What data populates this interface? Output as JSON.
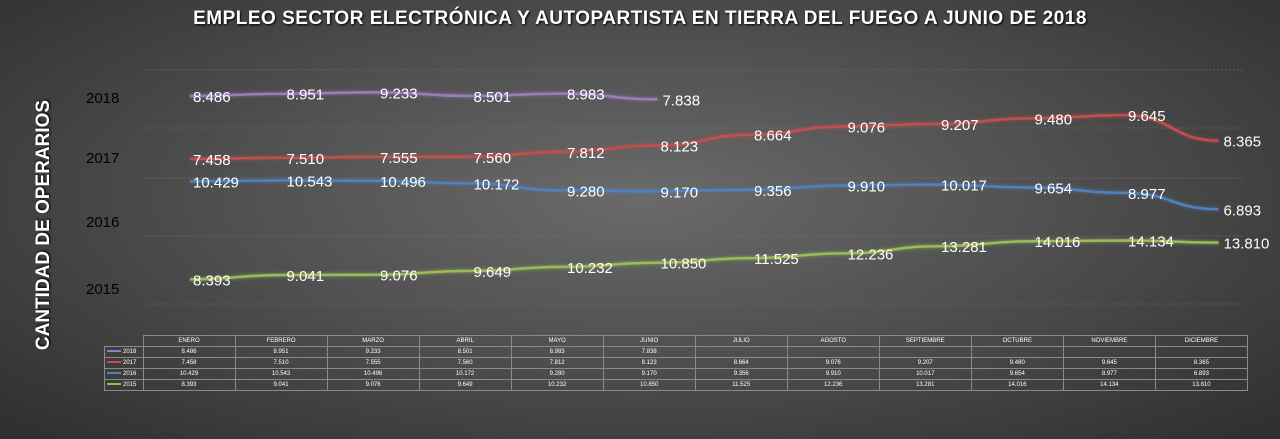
{
  "title": "EMPLEO SECTOR ELECTRÓNICA Y AUTOPARTISTA EN TIERRA DEL FUEGO A JUNIO DE 2018",
  "chart_data": {
    "type": "line",
    "title": "EMPLEO SECTOR ELECTRÓNICA Y AUTOPARTISTA EN TIERRA DEL FUEGO A JUNIO DE 2018",
    "ylabel": "CANTIDAD DE OPERARIOS",
    "xlabel": "",
    "categories": [
      "ENERO",
      "FEBRERO",
      "MARZO",
      "ABRIL",
      "MAYO",
      "JUNIO",
      "JULIO",
      "AGOSTO",
      "SEPTIEMBRE",
      "OCTUBRE",
      "NOVIEMBRE",
      "DICIEMBRE"
    ],
    "series": [
      {
        "name": "2018",
        "color": "#9b7bbf",
        "values": [
          8486,
          8951,
          9233,
          8501,
          8983,
          7838,
          null,
          null,
          null,
          null,
          null,
          null
        ],
        "labels": [
          "8.486",
          "8.951",
          "9.233",
          "8.501",
          "8.983",
          "7.838",
          "",
          "",
          "",
          "",
          "",
          ""
        ]
      },
      {
        "name": "2017",
        "color": "#c0504d",
        "values": [
          7458,
          7510,
          7555,
          7560,
          7812,
          8123,
          8664,
          9076,
          9207,
          9480,
          9645,
          8365
        ],
        "labels": [
          "7.458",
          "7.510",
          "7.555",
          "7.560",
          "7.812",
          "8.123",
          "8.664",
          "9.076",
          "9.207",
          "9.480",
          "9.645",
          "8.365"
        ]
      },
      {
        "name": "2016",
        "color": "#4f81bd",
        "values": [
          10429,
          10543,
          10496,
          10172,
          9280,
          9170,
          9356,
          9910,
          10017,
          9654,
          8977,
          6893
        ],
        "labels": [
          "10.429",
          "10.543",
          "10.496",
          "10.172",
          "9.280",
          "9.170",
          "9.356",
          "9.910",
          "10.017",
          "9.654",
          "8.977",
          "6.893"
        ]
      },
      {
        "name": "2015",
        "color": "#9bbb59",
        "values": [
          8393,
          9041,
          9076,
          9649,
          10232,
          10850,
          11525,
          12236,
          13281,
          14016,
          14134,
          13810
        ],
        "labels": [
          "8.393",
          "9.041",
          "9.076",
          "9.649",
          "10.232",
          "10.850",
          "11.525",
          "12.236",
          "13.281",
          "14.016",
          "14.134",
          "13.810"
        ]
      }
    ]
  }
}
